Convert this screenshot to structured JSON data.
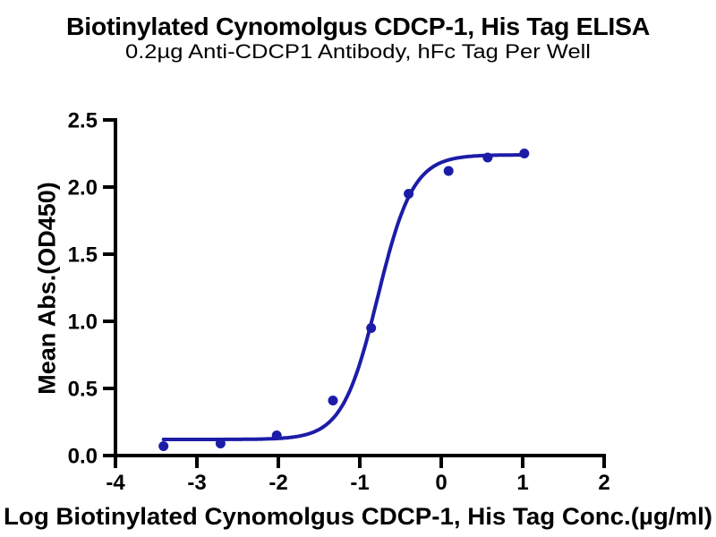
{
  "chart": {
    "title": "Biotinylated Cynomolgus CDCP-1, His Tag ELISA",
    "subtitle": "0.2µg Anti-CDCP1 Antibody, hFc Tag Per Well"
  },
  "chart_data": {
    "type": "scatter",
    "title": "Biotinylated Cynomolgus CDCP-1, His Tag ELISA",
    "subtitle": "0.2µg Anti-CDCP1 Antibody, hFc Tag Per Well",
    "xlabel": "Log Biotinylated Cynomolgus CDCP-1, His Tag Conc.(µg/ml)",
    "ylabel": "Mean Abs.(OD450)",
    "xlim": [
      -4,
      2
    ],
    "ylim": [
      0,
      2.5
    ],
    "x_ticks": [
      "-4",
      "-3",
      "-2",
      "-1",
      "0",
      "1",
      "2"
    ],
    "y_ticks": [
      "0.0",
      "0.5",
      "1.0",
      "1.5",
      "2.0",
      "2.5"
    ],
    "grid": false,
    "legend": "none",
    "series_color": "#1c1ca8",
    "axis_color": "#000000",
    "points": [
      [
        -3.41,
        0.07
      ],
      [
        -2.71,
        0.09
      ],
      [
        -2.02,
        0.15
      ],
      [
        -1.33,
        0.41
      ],
      [
        -0.86,
        0.95
      ],
      [
        -0.4,
        1.95
      ],
      [
        0.09,
        2.12
      ],
      [
        0.57,
        2.22
      ],
      [
        1.02,
        2.25
      ]
    ],
    "fit_curve": {
      "model": "4PL sigmoidal dose-response",
      "bottom": 0.12,
      "top": 2.24,
      "log_ec50": -0.78,
      "hill_slope": 2.0,
      "x_start": -3.41,
      "x_end": 1.02
    }
  }
}
